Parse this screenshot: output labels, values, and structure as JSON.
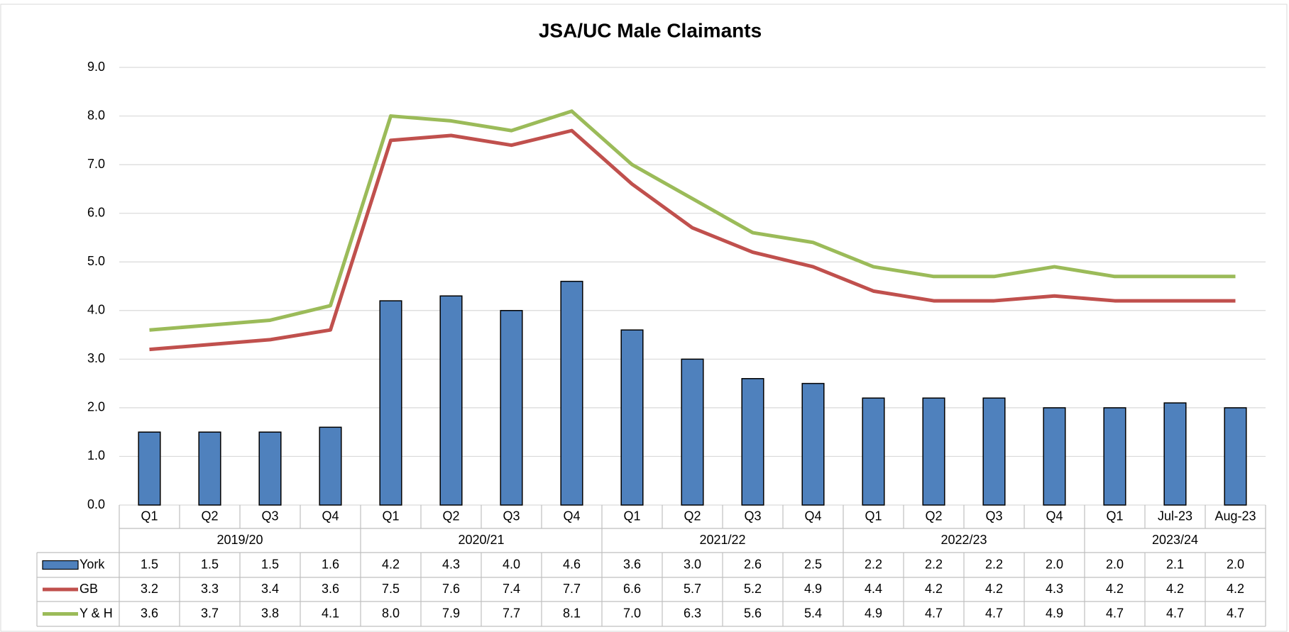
{
  "chart_data": {
    "type": "bar_line",
    "title": "JSA/UC Male Claimants",
    "groups": [
      {
        "name": "2019/20",
        "categories": [
          "Q1",
          "Q2",
          "Q3",
          "Q4"
        ]
      },
      {
        "name": "2020/21",
        "categories": [
          "Q1",
          "Q2",
          "Q3",
          "Q4"
        ]
      },
      {
        "name": "2021/22",
        "categories": [
          "Q1",
          "Q2",
          "Q3",
          "Q4"
        ]
      },
      {
        "name": "2022/23",
        "categories": [
          "Q1",
          "Q2",
          "Q3",
          "Q4"
        ]
      },
      {
        "name": "2023/24",
        "categories": [
          "Q1",
          "Jul-23",
          "Aug-23"
        ]
      }
    ],
    "series": [
      {
        "name": "York",
        "kind": "bar",
        "color": "#4f81bd",
        "values": [
          1.5,
          1.5,
          1.5,
          1.6,
          4.2,
          4.3,
          4.0,
          4.6,
          3.6,
          3.0,
          2.6,
          2.5,
          2.2,
          2.2,
          2.2,
          2.0,
          2.0,
          2.1,
          2.0
        ],
        "value_labels": [
          "1.5",
          "1.5",
          "1.5",
          "1.6",
          "4.2",
          "4.3",
          "4.0",
          "4.6",
          "3.6",
          "3.0",
          "2.6",
          "2.5",
          "2.2",
          "2.2",
          "2.2",
          "2.0",
          "2.0",
          "2.1",
          "2.0"
        ]
      },
      {
        "name": "GB",
        "kind": "line",
        "color": "#c0504d",
        "values": [
          3.2,
          3.3,
          3.4,
          3.6,
          7.5,
          7.6,
          7.4,
          7.7,
          6.6,
          5.7,
          5.2,
          4.9,
          4.4,
          4.2,
          4.2,
          4.3,
          4.2,
          4.2,
          4.2
        ],
        "value_labels": [
          "3.2",
          "3.3",
          "3.4",
          "3.6",
          "7.5",
          "7.6",
          "7.4",
          "7.7",
          "6.6",
          "5.7",
          "5.2",
          "4.9",
          "4.4",
          "4.2",
          "4.2",
          "4.3",
          "4.2",
          "4.2",
          "4.2"
        ]
      },
      {
        "name": "Y & H",
        "kind": "line",
        "color": "#9bbb59",
        "values": [
          3.6,
          3.7,
          3.8,
          4.1,
          8.0,
          7.9,
          7.7,
          8.1,
          7.0,
          6.3,
          5.6,
          5.4,
          4.9,
          4.7,
          4.7,
          4.9,
          4.7,
          4.7,
          4.7
        ],
        "value_labels": [
          "3.6",
          "3.7",
          "3.8",
          "4.1",
          "8.0",
          "7.9",
          "7.7",
          "8.1",
          "7.0",
          "6.3",
          "5.6",
          "5.4",
          "4.9",
          "4.7",
          "4.7",
          "4.9",
          "4.7",
          "4.7",
          "4.7"
        ]
      }
    ],
    "ylim": [
      0,
      9
    ],
    "yticks": [
      {
        "value": 0,
        "label": "0.0"
      },
      {
        "value": 1,
        "label": "1.0"
      },
      {
        "value": 2,
        "label": "2.0"
      },
      {
        "value": 3,
        "label": "3.0"
      },
      {
        "value": 4,
        "label": "4.0"
      },
      {
        "value": 5,
        "label": "5.0"
      },
      {
        "value": 6,
        "label": "6.0"
      },
      {
        "value": 7,
        "label": "7.0"
      },
      {
        "value": 8,
        "label": "8.0"
      },
      {
        "value": 9,
        "label": "9.0"
      }
    ],
    "grid": true
  }
}
